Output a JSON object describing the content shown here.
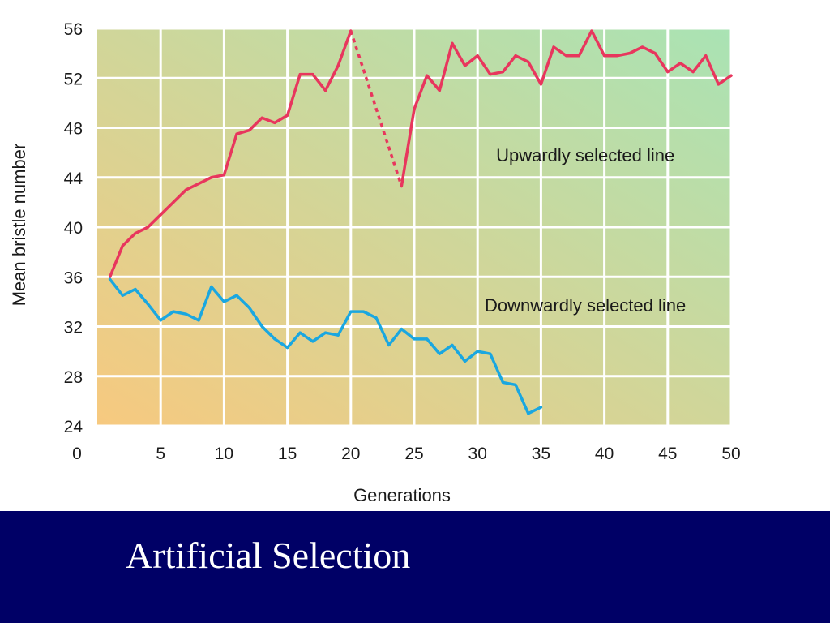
{
  "slide": {
    "title": "Artificial Selection",
    "banner_color": "#000066",
    "title_color": "#ffffff"
  },
  "chart_data": {
    "type": "line",
    "xlabel": "Generations",
    "ylabel": "Mean bristle number",
    "xlim": [
      0,
      50
    ],
    "ylim": [
      24,
      56
    ],
    "x_ticks": [
      0,
      5,
      10,
      15,
      20,
      25,
      30,
      35,
      40,
      45,
      50
    ],
    "y_ticks": [
      24,
      28,
      32,
      36,
      40,
      44,
      48,
      52,
      56
    ],
    "grid": true,
    "background_gradient": [
      "#f7c97f",
      "#a9e3b4"
    ],
    "series": [
      {
        "name": "Upwardly selected line",
        "color": "#e8365d",
        "x": [
          1,
          2,
          3,
          4,
          5,
          6,
          7,
          8,
          9,
          10,
          11,
          12,
          13,
          14,
          15,
          16,
          17,
          18,
          19,
          20
        ],
        "y": [
          36,
          38.5,
          39.5,
          40,
          41,
          42,
          43,
          43.5,
          44,
          44.2,
          47.5,
          47.8,
          48.8,
          48.4,
          49,
          52.3,
          52.3,
          51,
          53,
          55.8
        ]
      },
      {
        "name": "Upwardly selected line (gap)",
        "color": "#e8365d",
        "dashed": true,
        "x": [
          20,
          24
        ],
        "y": [
          55.8,
          43.3
        ]
      },
      {
        "name": "Upwardly selected line (continued)",
        "color": "#e8365d",
        "x": [
          24,
          25,
          26,
          27,
          28,
          29,
          30,
          31,
          32,
          33,
          34,
          35,
          36,
          37,
          38,
          39,
          40,
          41,
          42,
          43,
          44,
          45,
          46,
          47,
          48,
          49,
          50
        ],
        "y": [
          43.3,
          49.5,
          52.2,
          51,
          54.8,
          53,
          53.8,
          52.3,
          52.5,
          53.8,
          53.3,
          51.5,
          54.5,
          53.8,
          53.8,
          55.8,
          53.8,
          53.8,
          54,
          54.5,
          54,
          52.5,
          53.2,
          52.5,
          53.8,
          51.5,
          52.2
        ]
      },
      {
        "name": "Downwardly selected line",
        "color": "#1aa7e0",
        "x": [
          1,
          2,
          3,
          4,
          5,
          6,
          7,
          8,
          9,
          10,
          11,
          12,
          13,
          14,
          15,
          16,
          17,
          18,
          19,
          20,
          21,
          22,
          23,
          24,
          25,
          26,
          27,
          28,
          29,
          30,
          31,
          32,
          33,
          34,
          35
        ],
        "y": [
          35.8,
          34.5,
          35,
          33.8,
          32.5,
          33.2,
          33,
          32.5,
          35.2,
          34,
          34.5,
          33.5,
          32,
          31,
          30.3,
          31.5,
          30.8,
          31.5,
          31.3,
          33.2,
          33.2,
          32.7,
          30.5,
          31.8,
          31,
          31,
          29.8,
          30.5,
          29.2,
          30,
          29.8,
          27.5,
          27.3,
          25,
          25.5
        ]
      }
    ],
    "annotations": [
      {
        "text": "Upwardly selected line",
        "x": 38.5,
        "y": 45.3
      },
      {
        "text": "Downwardly selected line",
        "x": 38.5,
        "y": 33.2
      }
    ]
  }
}
